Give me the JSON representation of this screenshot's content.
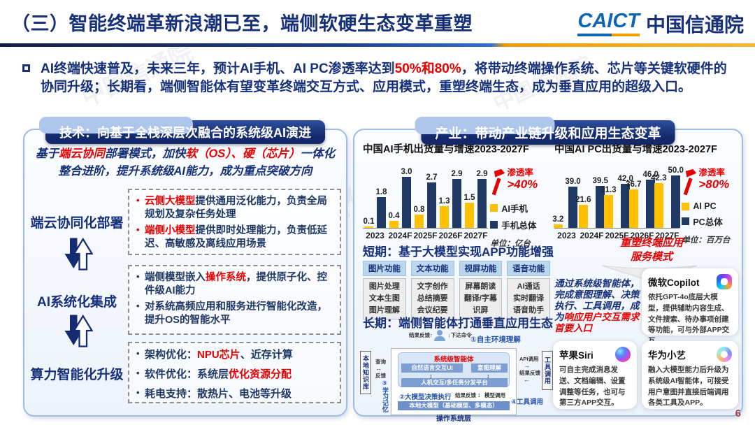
{
  "slide": {
    "title": "（三）智能终端革新浪潮已至，端侧软硬生态变革重塑",
    "page_number": "6",
    "watermark": "中国信通院",
    "logo": {
      "abbr": "CAICT",
      "name_cn": "中国信通院"
    }
  },
  "intro": {
    "segments": [
      {
        "t": "AI终端快速普及，未来三年，预计AI手机、AI PC渗透率达到"
      },
      {
        "t": "50%和80%",
        "red": true
      },
      {
        "t": "，将带动终端操作系统、芯片等关键软硬件的协同升级；长期看，端侧智能体有望变革终端交互方式、应用模式，重塑终端生态，成为垂直应用的超级入口。"
      }
    ]
  },
  "tech_panel": {
    "header": "技术：向基于全栈深层次融合的系统级AI演进",
    "subtitle_segments": [
      {
        "t": "基于"
      },
      {
        "t": "端云协同",
        "red": true
      },
      {
        "t": "部署模式，加快"
      },
      {
        "t": "软（OS）、硬（芯片）",
        "red": true
      },
      {
        "t": "一体化整合进阶，提升系统级AI能力，成为重点突破方向"
      }
    ],
    "rows": [
      {
        "label": "端云协同化部署",
        "bullets": [
          [
            {
              "t": "云侧大模型",
              "red": true
            },
            {
              "t": "提供通用泛化能力，负责全局规划及复杂任务处理"
            }
          ],
          [
            {
              "t": "端侧小模型",
              "red": true
            },
            {
              "t": "提供即时处理能力，负责低延迟、高敏感及离线应用场景"
            }
          ]
        ]
      },
      {
        "label": "AI系统化集成",
        "bullets": [
          [
            {
              "t": "端侧模型嵌入"
            },
            {
              "t": "操作系统",
              "red": true
            },
            {
              "t": "，提供原子化、控件级AI能力"
            }
          ],
          [
            {
              "t": "对系统高频应用和服务进行智能化改造，提升OS的智能水平"
            }
          ]
        ]
      },
      {
        "label": "算力智能化升级",
        "bullets": [
          [
            {
              "t": "架构优化："
            },
            {
              "t": "NPU芯片",
              "red": true
            },
            {
              "t": "、近存计算"
            }
          ],
          [
            {
              "t": "软件优化：系统层"
            },
            {
              "t": "优化资源分配",
              "red": true
            }
          ],
          [
            {
              "t": "耗电支持：散热片、电池等升级"
            }
          ]
        ]
      }
    ]
  },
  "industry_panel": {
    "header": "产业：带动产业链升级和应用生态变革",
    "short_term": {
      "heading": "短期：基于大模型实现APP功能增强",
      "columns": [
        {
          "header": "图片功能",
          "items": [
            "图片处理",
            "文本生图",
            "图片理解"
          ]
        },
        {
          "header": "文本功能",
          "items": [
            "文字创作",
            "总结摘要",
            "会议纪要"
          ]
        },
        {
          "header": "视屏功能",
          "items": [
            "屏幕朗读",
            "翻译/字幕",
            "识屏"
          ]
        },
        {
          "header": "语音功能",
          "items": [
            "AI通话",
            "实时翻译",
            "语音助手"
          ]
        }
      ]
    },
    "long_term": {
      "heading": "长期：端侧智能体打通垂直应用生态"
    },
    "reshape_note": {
      "line1": "重塑终端应用",
      "line2": "服务模式"
    },
    "agent_text_segments": [
      {
        "t": "通过系统级智能体，完成意图理解、决策执行、工具调用，成为"
      },
      {
        "t": "响应用户交互需求首要入口",
        "red": true
      }
    ],
    "diagram": {
      "step1": "①自主环境理解",
      "step2": "②大模型决策执行",
      "step3": "③学习记忆",
      "step4": "④工具调用",
      "top_feedback": "结果反馈",
      "top_command": "下达命令",
      "kb_box": "本地知识库",
      "query": "查询",
      "feedback": "反馈",
      "agent_title": "系统级智能体",
      "ui_box": "自然语言交互UI",
      "intent_box": "意图理解",
      "dispatch_box": "人机交互/多任务分发平台",
      "result_feedback": "结果反馈",
      "model_call": "模型调用",
      "model_box": "本地大模型（基础模型、多模态）",
      "os_layer": "操作系统层",
      "tools_box": "工具调用",
      "api_call": "API调用",
      "result_feedback2": "结果反馈"
    },
    "cards": [
      {
        "title": "微软Copilot",
        "icon": "copilot-icon",
        "body": "依托GPT-4o底层大模型，提供辅助内容生成、文件搜索、待办事项创建等功能，可与外部APP交互。"
      },
      {
        "title": "苹果Siri",
        "icon": "siri-icon",
        "body": "可自主完成消息发送、文档编辑、设置调整等任务，也可与第三方APP交互。"
      },
      {
        "title": "华为小艺",
        "icon": "xiaoyi-icon",
        "body": "融入大模型能力后升级为系统级AI智能体，可接受用户意图并直接后端调用各类工具及APP。"
      }
    ]
  },
  "chart_data": [
    {
      "type": "bar",
      "title": "中国AI手机出货量与增速2023-2027F",
      "categories": [
        "2023",
        "2024F",
        "2025F",
        "2026F",
        "2027F"
      ],
      "series": [
        {
          "name": "AI手机",
          "color": "#FFC000",
          "values": [
            0.1,
            0.4,
            0.8,
            1.3,
            1.5
          ]
        },
        {
          "name": "手机总体",
          "color": "#1F3864",
          "values": [
            1.8,
            3.0,
            2.7,
            2.9,
            2.9
          ]
        }
      ],
      "ylim": [
        0,
        3.3
      ],
      "grid": false,
      "legend_position": "right",
      "unit_label": "单位：亿台",
      "penetration_label": "渗透率",
      "penetration_value": ">40%"
    },
    {
      "type": "bar",
      "title": "中国AI PC出货量与增速2023-2027F",
      "categories": [
        "2023",
        "2024F",
        "2025F",
        "2026F",
        "2027F"
      ],
      "series": [
        {
          "name": "AI PC",
          "color": "#FFC000",
          "values": [
            3.2,
            21.6,
            31.3,
            36.7,
            42.3
          ]
        },
        {
          "name": "PC总体",
          "color": "#1F3864",
          "values": [
            39.0,
            39.5,
            42.0,
            46.0,
            50.0
          ]
        }
      ],
      "ylim": [
        0,
        53
      ],
      "grid": false,
      "legend_position": "right",
      "unit_label": "单位：百万台",
      "penetration_label": "渗透率",
      "penetration_value": ">80%"
    }
  ]
}
